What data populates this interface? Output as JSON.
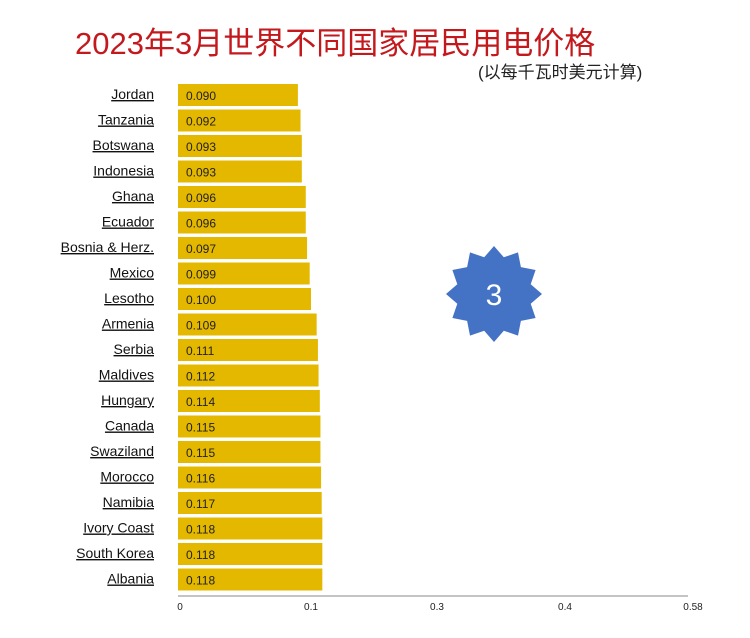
{
  "title": "2023年3月世界不同国家居民用电价格",
  "subtitle": "(以每千瓦时美元计算)",
  "badge": {
    "text": "3",
    "color": "#4472c4"
  },
  "chart_data": {
    "type": "bar",
    "orientation": "horizontal",
    "categories": [
      "Jordan",
      "Tanzania",
      "Botswana",
      "Indonesia",
      "Ghana",
      "Ecuador",
      "Bosnia & Herz.",
      "Mexico",
      "Lesotho",
      "Armenia",
      "Serbia",
      "Maldives",
      "Hungary",
      "Canada",
      "Swaziland",
      "Morocco",
      "Namibia",
      "Ivory Coast",
      "South Korea",
      "Albania"
    ],
    "values": [
      0.09,
      0.092,
      0.093,
      0.093,
      0.096,
      0.096,
      0.097,
      0.099,
      0.1,
      0.109,
      0.111,
      0.112,
      0.114,
      0.115,
      0.115,
      0.116,
      0.117,
      0.118,
      0.118,
      0.118
    ],
    "value_labels": [
      "0.090",
      "0.092",
      "0.093",
      "0.093",
      "0.096",
      "0.096",
      "0.097",
      "0.099",
      "0.100",
      "0.109",
      "0.111",
      "0.112",
      "0.114",
      "0.115",
      "0.115",
      "0.116",
      "0.117",
      "0.118",
      "0.118",
      "0.118"
    ],
    "x_ticks": [
      0,
      0.1,
      0.3,
      0.4,
      0.58
    ],
    "x_tick_labels": [
      "0",
      "0.1",
      "0.3",
      "0.4",
      "0.58"
    ],
    "xlim": [
      0,
      0.58
    ],
    "bar_color": "#e5b800",
    "grid": false
  }
}
